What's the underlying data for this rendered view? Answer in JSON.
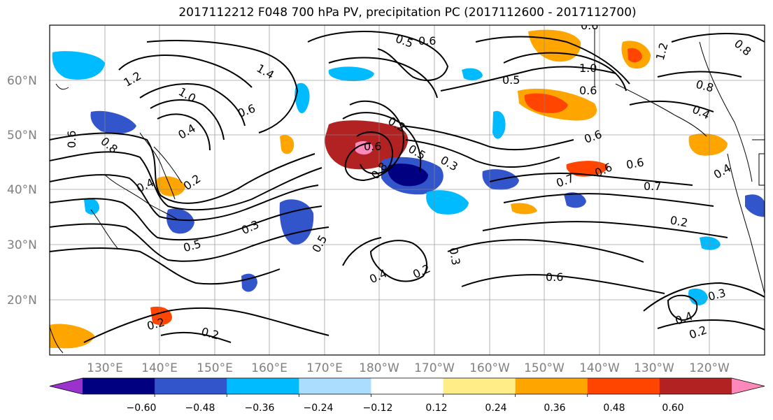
{
  "title": "2017112212 F048 700 hPa PV, precipitation PC (2017112600 - 2017112700)",
  "latitude_labels": [
    "60°N",
    "50°N",
    "40°N",
    "30°N",
    "20°N"
  ],
  "longitude_labels": [
    "130°E",
    "140°E",
    "150°E",
    "160°E",
    "170°E",
    "180°W",
    "170°W",
    "160°W",
    "150°W",
    "140°W",
    "130°W",
    "120°W"
  ],
  "colorbar": {
    "tick_labels": [
      "−0.60",
      "−0.48",
      "−0.36",
      "−0.24",
      "−0.12",
      "0.12",
      "0.24",
      "0.36",
      "0.48",
      "0.60"
    ],
    "colors": [
      "#9933cc",
      "#000080",
      "#3355cc",
      "#00bbff",
      "#aaddff",
      "#ffffff",
      "#ffee88",
      "#ffa500",
      "#ff4500",
      "#b22222",
      "#ff88bb"
    ]
  },
  "contour_labels": [
    "0.6",
    "0.5",
    "0.6",
    "1.2",
    "1.4",
    "1.0",
    "0.8",
    "0.6",
    "0.4",
    "0.2",
    "0.3",
    "0.5",
    "0.8",
    "0.7",
    "0.6",
    "0.4",
    "0.2",
    "0.6",
    "0.5",
    "0.3",
    "0.2",
    "0.4",
    "0.5",
    "0.6",
    "1.0",
    "0.6",
    "0.8",
    "1.2",
    "0.4",
    "0.8",
    "0.5",
    "0.6",
    "0.7",
    "0.2",
    "0.3",
    "0.4",
    "0.6",
    "0.3",
    "0.2",
    "0.4",
    "0.2",
    "0.6",
    "0.2"
  ]
}
